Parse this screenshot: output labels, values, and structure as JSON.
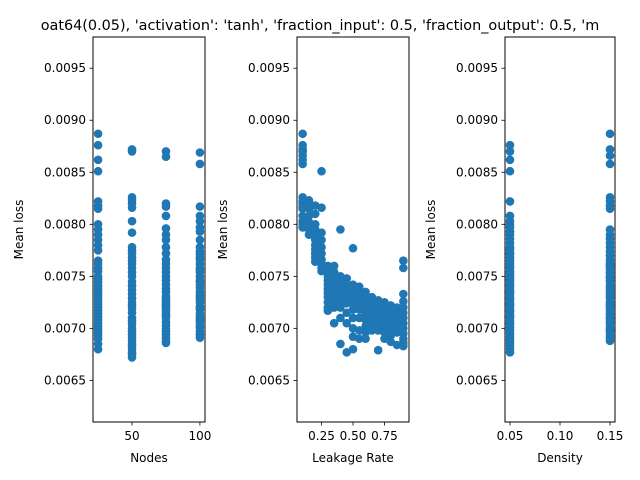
{
  "figure": {
    "title": "oat64(0.05), 'activation': 'tanh', 'fraction_input': 0.5, 'fraction_output': 0.5, 'm",
    "point_color": "#1f77b4"
  },
  "chart_data": [
    {
      "type": "scatter",
      "xlabel": "Nodes",
      "ylabel": "Mean loss",
      "xlim": [
        21.25,
        103.75
      ],
      "ylim": [
        0.0061,
        0.0098
      ],
      "xticks": [
        50,
        100
      ],
      "xtick_labels": [
        "50",
        "100"
      ],
      "yticks": [
        0.0065,
        0.007,
        0.0075,
        0.008,
        0.0085,
        0.009,
        0.0095
      ],
      "ytick_labels": [
        "0.0065",
        "0.0070",
        "0.0075",
        "0.0080",
        "0.0085",
        "0.0090",
        "0.0095"
      ],
      "series": [
        {
          "x": [
            25,
            25,
            25,
            25,
            25,
            25,
            25,
            25,
            25,
            25,
            25,
            25,
            25,
            25,
            25,
            25,
            25,
            25,
            25,
            25,
            25,
            25,
            25,
            25,
            25,
            25,
            25,
            25,
            25,
            25,
            25,
            25,
            25,
            25,
            25,
            25,
            25,
            25,
            25,
            25,
            50,
            50,
            50,
            50,
            50,
            50,
            50,
            50,
            50,
            50,
            50,
            50,
            50,
            50,
            50,
            50,
            50,
            50,
            50,
            50,
            50,
            50,
            50,
            50,
            50,
            50,
            50,
            50,
            50,
            50,
            50,
            50,
            50,
            50,
            50,
            50,
            50,
            50,
            50,
            50,
            75,
            75,
            75,
            75,
            75,
            75,
            75,
            75,
            75,
            75,
            75,
            75,
            75,
            75,
            75,
            75,
            75,
            75,
            75,
            75,
            75,
            75,
            75,
            75,
            75,
            75,
            75,
            75,
            75,
            75,
            75,
            75,
            75,
            75,
            75,
            75,
            75,
            75,
            75,
            75,
            100,
            100,
            100,
            100,
            100,
            100,
            100,
            100,
            100,
            100,
            100,
            100,
            100,
            100,
            100,
            100,
            100,
            100,
            100,
            100,
            100,
            100,
            100,
            100,
            100,
            100,
            100,
            100,
            100,
            100,
            100,
            100,
            100,
            100,
            100,
            100,
            100,
            100,
            100,
            100
          ],
          "y": [
            0.00887,
            0.00876,
            0.00862,
            0.00851,
            0.00822,
            0.00818,
            0.00815,
            0.008,
            0.00795,
            0.0079,
            0.00785,
            0.0078,
            0.00775,
            0.00765,
            0.00762,
            0.00758,
            0.00755,
            0.0075,
            0.00747,
            0.00744,
            0.00741,
            0.00738,
            0.00735,
            0.00732,
            0.00729,
            0.00726,
            0.00723,
            0.0072,
            0.00717,
            0.00714,
            0.00711,
            0.00708,
            0.00705,
            0.00702,
            0.00699,
            0.00696,
            0.00693,
            0.0069,
            0.00685,
            0.0068,
            0.00872,
            0.0087,
            0.00826,
            0.00823,
            0.0082,
            0.00816,
            0.00803,
            0.00792,
            0.00778,
            0.00775,
            0.00772,
            0.00768,
            0.00765,
            0.00762,
            0.00758,
            0.00754,
            0.0075,
            0.00745,
            0.00741,
            0.00737,
            0.00733,
            0.00729,
            0.00725,
            0.00722,
            0.00719,
            0.00715,
            0.0071,
            0.00707,
            0.00704,
            0.007,
            0.00697,
            0.00694,
            0.00691,
            0.00688,
            0.00685,
            0.00683,
            0.0068,
            0.00677,
            0.00675,
            0.00672,
            0.0087,
            0.00865,
            0.0082,
            0.00817,
            0.00808,
            0.00796,
            0.0079,
            0.00785,
            0.00778,
            0.00772,
            0.00766,
            0.00762,
            0.00758,
            0.00754,
            0.0075,
            0.00746,
            0.00742,
            0.00738,
            0.00735,
            0.00731,
            0.00728,
            0.00724,
            0.00721,
            0.00718,
            0.00714,
            0.0071,
            0.00706,
            0.00703,
            0.007,
            0.00697,
            0.00694,
            0.00691,
            0.00688,
            0.00686,
            0.00722,
            0.00726,
            0.0073,
            0.00716,
            0.0072,
            0.00712,
            0.00869,
            0.00858,
            0.00817,
            0.00808,
            0.00803,
            0.00797,
            0.00793,
            0.00785,
            0.00778,
            0.00774,
            0.00771,
            0.00766,
            0.00762,
            0.00758,
            0.00754,
            0.0075,
            0.00746,
            0.00742,
            0.00739,
            0.00735,
            0.00732,
            0.00728,
            0.00725,
            0.00721,
            0.00718,
            0.00714,
            0.00711,
            0.00707,
            0.00704,
            0.00701,
            0.00697,
            0.00694,
            0.00691,
            0.00745,
            0.0073,
            0.0072,
            0.00709,
            0.00701,
            0.00756,
            0.00768
          ]
        }
      ]
    },
    {
      "type": "scatter",
      "xlabel": "Leakage Rate",
      "ylabel": "Mean loss",
      "xlim": [
        0.055,
        0.945
      ],
      "ylim": [
        0.0061,
        0.0098
      ],
      "xticks": [
        0.25,
        0.5,
        0.75
      ],
      "xtick_labels": [
        "0.25",
        "0.50",
        "0.75"
      ],
      "yticks": [
        0.0065,
        0.007,
        0.0075,
        0.008,
        0.0085,
        0.009,
        0.0095
      ],
      "ytick_labels": [
        "0.0065",
        "0.0070",
        "0.0075",
        "0.0080",
        "0.0085",
        "0.0090",
        "0.0095"
      ],
      "series": [
        {
          "x": [
            0.1,
            0.1,
            0.1,
            0.1,
            0.1,
            0.1,
            0.1,
            0.1,
            0.1,
            0.1,
            0.1,
            0.1,
            0.1,
            0.1,
            0.1,
            0.1,
            0.1,
            0.15,
            0.15,
            0.15,
            0.15,
            0.15,
            0.15,
            0.15,
            0.2,
            0.2,
            0.2,
            0.2,
            0.2,
            0.2,
            0.2,
            0.2,
            0.2,
            0.2,
            0.2,
            0.25,
            0.25,
            0.25,
            0.25,
            0.25,
            0.25,
            0.25,
            0.25,
            0.25,
            0.25,
            0.3,
            0.3,
            0.3,
            0.3,
            0.3,
            0.3,
            0.3,
            0.3,
            0.3,
            0.3,
            0.3,
            0.35,
            0.35,
            0.35,
            0.35,
            0.35,
            0.35,
            0.35,
            0.35,
            0.35,
            0.4,
            0.4,
            0.4,
            0.4,
            0.4,
            0.4,
            0.4,
            0.4,
            0.4,
            0.4,
            0.45,
            0.45,
            0.45,
            0.45,
            0.45,
            0.45,
            0.45,
            0.45,
            0.5,
            0.5,
            0.5,
            0.5,
            0.5,
            0.5,
            0.5,
            0.5,
            0.5,
            0.5,
            0.55,
            0.55,
            0.55,
            0.55,
            0.55,
            0.55,
            0.55,
            0.55,
            0.6,
            0.6,
            0.6,
            0.6,
            0.6,
            0.6,
            0.6,
            0.6,
            0.6,
            0.65,
            0.65,
            0.65,
            0.65,
            0.65,
            0.65,
            0.65,
            0.7,
            0.7,
            0.7,
            0.7,
            0.7,
            0.7,
            0.7,
            0.75,
            0.75,
            0.75,
            0.75,
            0.75,
            0.75,
            0.75,
            0.8,
            0.8,
            0.8,
            0.8,
            0.8,
            0.8,
            0.8,
            0.85,
            0.85,
            0.85,
            0.85,
            0.85,
            0.85,
            0.9,
            0.9,
            0.9,
            0.9,
            0.9,
            0.9,
            0.9,
            0.9,
            0.9,
            0.9,
            0.9,
            0.9,
            0.9
          ],
          "y": [
            0.00887,
            0.00876,
            0.00872,
            0.0087,
            0.00866,
            0.00862,
            0.00858,
            0.00826,
            0.00822,
            0.0082,
            0.00817,
            0.00816,
            0.00815,
            0.00808,
            0.00803,
            0.008,
            0.00797,
            0.00823,
            0.0082,
            0.00815,
            0.00808,
            0.00802,
            0.00795,
            0.0079,
            0.00818,
            0.0081,
            0.008,
            0.00795,
            0.0079,
            0.00785,
            0.0078,
            0.00776,
            0.00772,
            0.00768,
            0.00764,
            0.00851,
            0.00816,
            0.00792,
            0.00785,
            0.00778,
            0.00772,
            0.00766,
            0.00762,
            0.00758,
            0.00755,
            0.0076,
            0.00755,
            0.0075,
            0.00746,
            0.00742,
            0.00738,
            0.00734,
            0.0073,
            0.00725,
            0.0072,
            0.00717,
            0.0076,
            0.00754,
            0.00748,
            0.00742,
            0.00736,
            0.0073,
            0.00726,
            0.0072,
            0.00705,
            0.00795,
            0.0075,
            0.00745,
            0.0074,
            0.00735,
            0.0073,
            0.00725,
            0.0072,
            0.0071,
            0.00685,
            0.00748,
            0.00742,
            0.00736,
            0.0073,
            0.00724,
            0.00715,
            0.00705,
            0.00677,
            0.00777,
            0.00742,
            0.00736,
            0.0073,
            0.00724,
            0.00718,
            0.0071,
            0.007,
            0.00692,
            0.0068,
            0.0074,
            0.00735,
            0.0073,
            0.00724,
            0.00718,
            0.0071,
            0.00698,
            0.0069,
            0.00735,
            0.0073,
            0.00725,
            0.0072,
            0.00714,
            0.00708,
            0.00702,
            0.00696,
            0.0069,
            0.0073,
            0.00726,
            0.00722,
            0.00716,
            0.0071,
            0.00704,
            0.00698,
            0.00727,
            0.00722,
            0.00716,
            0.0071,
            0.00704,
            0.00698,
            0.00679,
            0.00725,
            0.0072,
            0.00714,
            0.00708,
            0.00702,
            0.00696,
            0.0069,
            0.00722,
            0.00717,
            0.00711,
            0.00705,
            0.00699,
            0.00693,
            0.00687,
            0.0072,
            0.00714,
            0.00708,
            0.00702,
            0.00696,
            0.00684,
            0.00765,
            0.00758,
            0.00733,
            0.00726,
            0.0072,
            0.00715,
            0.0071,
            0.00705,
            0.007,
            0.00695,
            0.0069,
            0.00686,
            0.00683
          ]
        }
      ]
    },
    {
      "type": "scatter",
      "xlabel": "Density",
      "ylabel": "Mean loss",
      "xlim": [
        0.045,
        0.155
      ],
      "ylim": [
        0.0061,
        0.0098
      ],
      "xticks": [
        0.05,
        0.1,
        0.15
      ],
      "xtick_labels": [
        "0.05",
        "0.10",
        "0.15"
      ],
      "yticks": [
        0.0065,
        0.007,
        0.0075,
        0.008,
        0.0085,
        0.009,
        0.0095
      ],
      "ytick_labels": [
        "0.0065",
        "0.0070",
        "0.0075",
        "0.0080",
        "0.0085",
        "0.0090",
        "0.0095"
      ],
      "series": [
        {
          "x": [
            0.05,
            0.05,
            0.05,
            0.05,
            0.05,
            0.05,
            0.05,
            0.05,
            0.05,
            0.05,
            0.05,
            0.05,
            0.05,
            0.05,
            0.05,
            0.05,
            0.05,
            0.05,
            0.05,
            0.05,
            0.05,
            0.05,
            0.05,
            0.05,
            0.05,
            0.05,
            0.05,
            0.05,
            0.05,
            0.05,
            0.05,
            0.05,
            0.05,
            0.05,
            0.05,
            0.05,
            0.05,
            0.05,
            0.05,
            0.05,
            0.05,
            0.05,
            0.05,
            0.05,
            0.05,
            0.05,
            0.05,
            0.05,
            0.05,
            0.05,
            0.05,
            0.05,
            0.05,
            0.05,
            0.05,
            0.05,
            0.05,
            0.05,
            0.05,
            0.05,
            0.15,
            0.15,
            0.15,
            0.15,
            0.15,
            0.15,
            0.15,
            0.15,
            0.15,
            0.15,
            0.15,
            0.15,
            0.15,
            0.15,
            0.15,
            0.15,
            0.15,
            0.15,
            0.15,
            0.15,
            0.15,
            0.15,
            0.15,
            0.15,
            0.15,
            0.15,
            0.15,
            0.15,
            0.15,
            0.15,
            0.15,
            0.15,
            0.15,
            0.15,
            0.15,
            0.15,
            0.15,
            0.15,
            0.15,
            0.15,
            0.15,
            0.15,
            0.15,
            0.15,
            0.15,
            0.15,
            0.15,
            0.15,
            0.15,
            0.15,
            0.15,
            0.15,
            0.15,
            0.15,
            0.15,
            0.15,
            0.15,
            0.15,
            0.15,
            0.15
          ],
          "y": [
            0.00876,
            0.0087,
            0.00862,
            0.00851,
            0.00822,
            0.00808,
            0.00803,
            0.008,
            0.00797,
            0.00793,
            0.0079,
            0.00786,
            0.00782,
            0.00778,
            0.00775,
            0.00772,
            0.00768,
            0.00765,
            0.00762,
            0.00758,
            0.00755,
            0.00752,
            0.00749,
            0.00746,
            0.00743,
            0.0074,
            0.00737,
            0.00734,
            0.00731,
            0.00728,
            0.00725,
            0.00722,
            0.00719,
            0.00716,
            0.00713,
            0.0071,
            0.00707,
            0.00704,
            0.00701,
            0.00698,
            0.00695,
            0.00692,
            0.00689,
            0.00686,
            0.00683,
            0.0068,
            0.00677,
            0.00777,
            0.00771,
            0.00765,
            0.00759,
            0.00753,
            0.00747,
            0.00741,
            0.00735,
            0.00729,
            0.00723,
            0.00717,
            0.00711,
            0.00705,
            0.00887,
            0.00872,
            0.00866,
            0.00858,
            0.00826,
            0.00822,
            0.00818,
            0.00815,
            0.00795,
            0.0079,
            0.00786,
            0.00782,
            0.00778,
            0.00774,
            0.0077,
            0.00766,
            0.00762,
            0.00758,
            0.00754,
            0.0075,
            0.00746,
            0.00742,
            0.00738,
            0.00734,
            0.0073,
            0.00726,
            0.00722,
            0.00718,
            0.00714,
            0.0071,
            0.00706,
            0.00702,
            0.00698,
            0.00694,
            0.0069,
            0.00688,
            0.00764,
            0.00756,
            0.00748,
            0.0074,
            0.00732,
            0.00724,
            0.00716,
            0.00708,
            0.007,
            0.00692,
            0.00761,
            0.00753,
            0.00745,
            0.00737,
            0.00729,
            0.00721,
            0.00713,
            0.00705,
            0.00697,
            0.0077,
            0.0076,
            0.0075,
            0.0072,
            0.0071
          ]
        }
      ]
    }
  ]
}
